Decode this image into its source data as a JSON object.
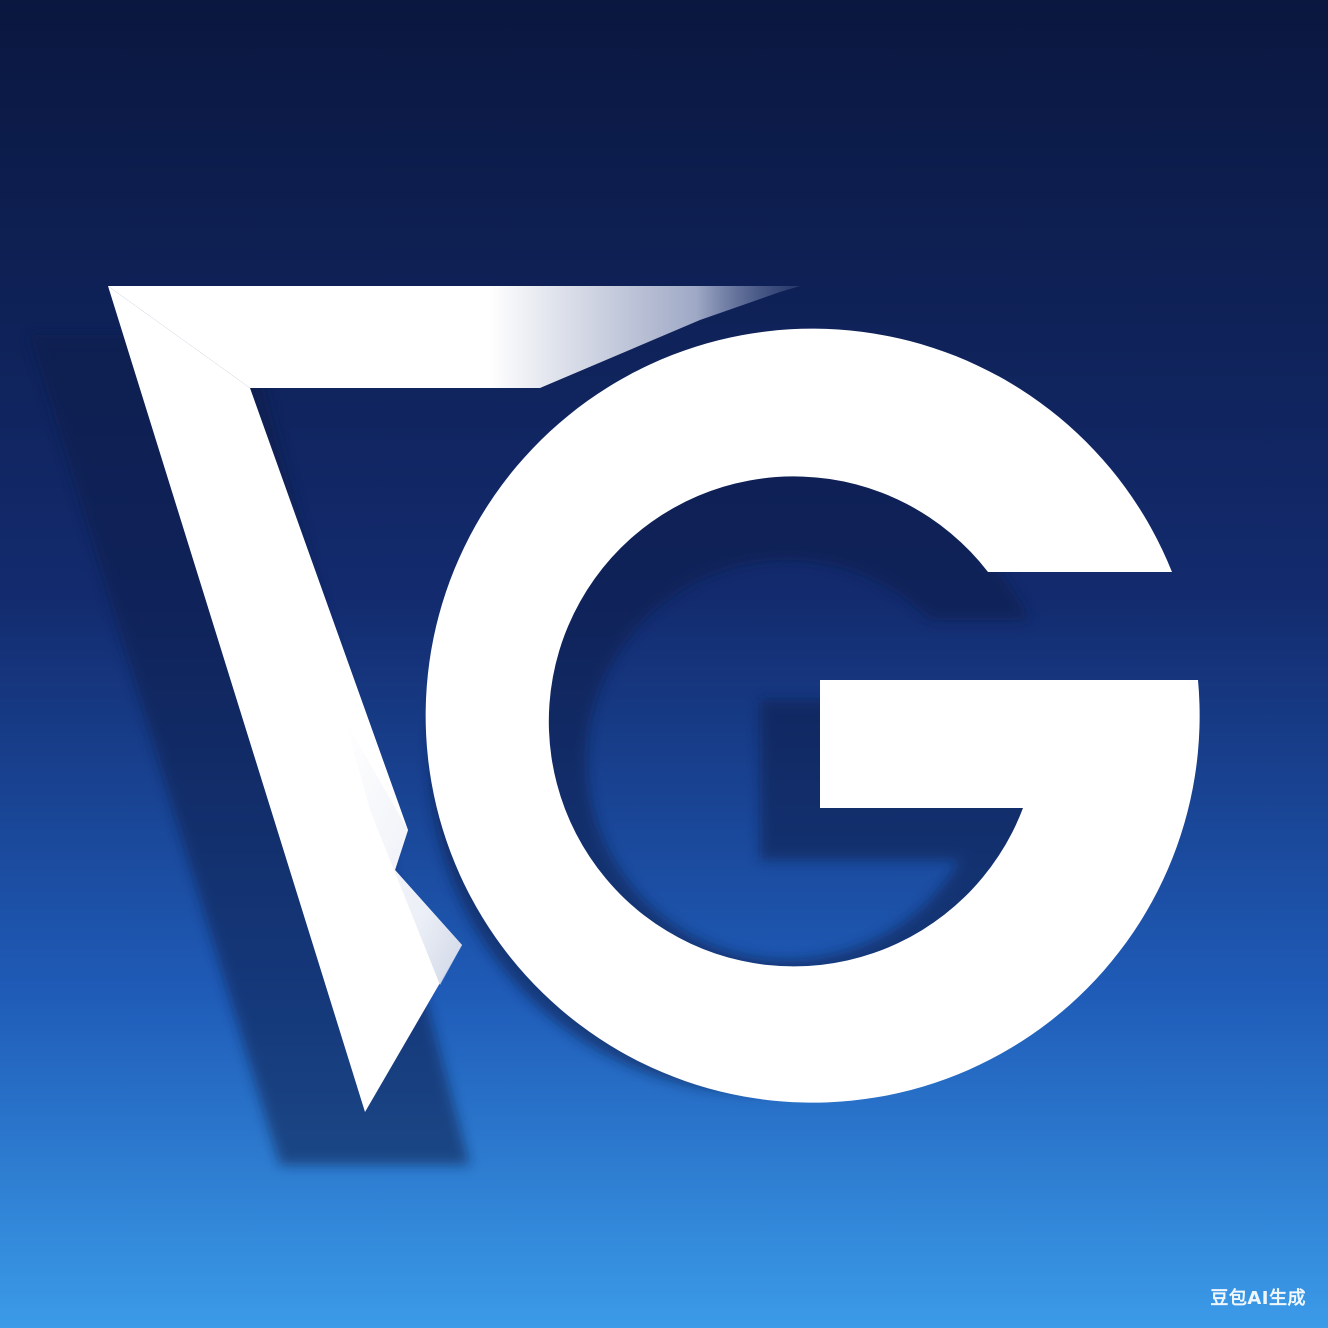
{
  "logo": {
    "monogram_letters": "VG",
    "colors": {
      "background_top": "#0b1a44",
      "background_mid": "#132d73",
      "background_bottom": "#3a9ae6",
      "mark": "#ffffff",
      "shadow": "#0a1a4a"
    }
  },
  "watermark": {
    "text": "豆包AI生成"
  }
}
